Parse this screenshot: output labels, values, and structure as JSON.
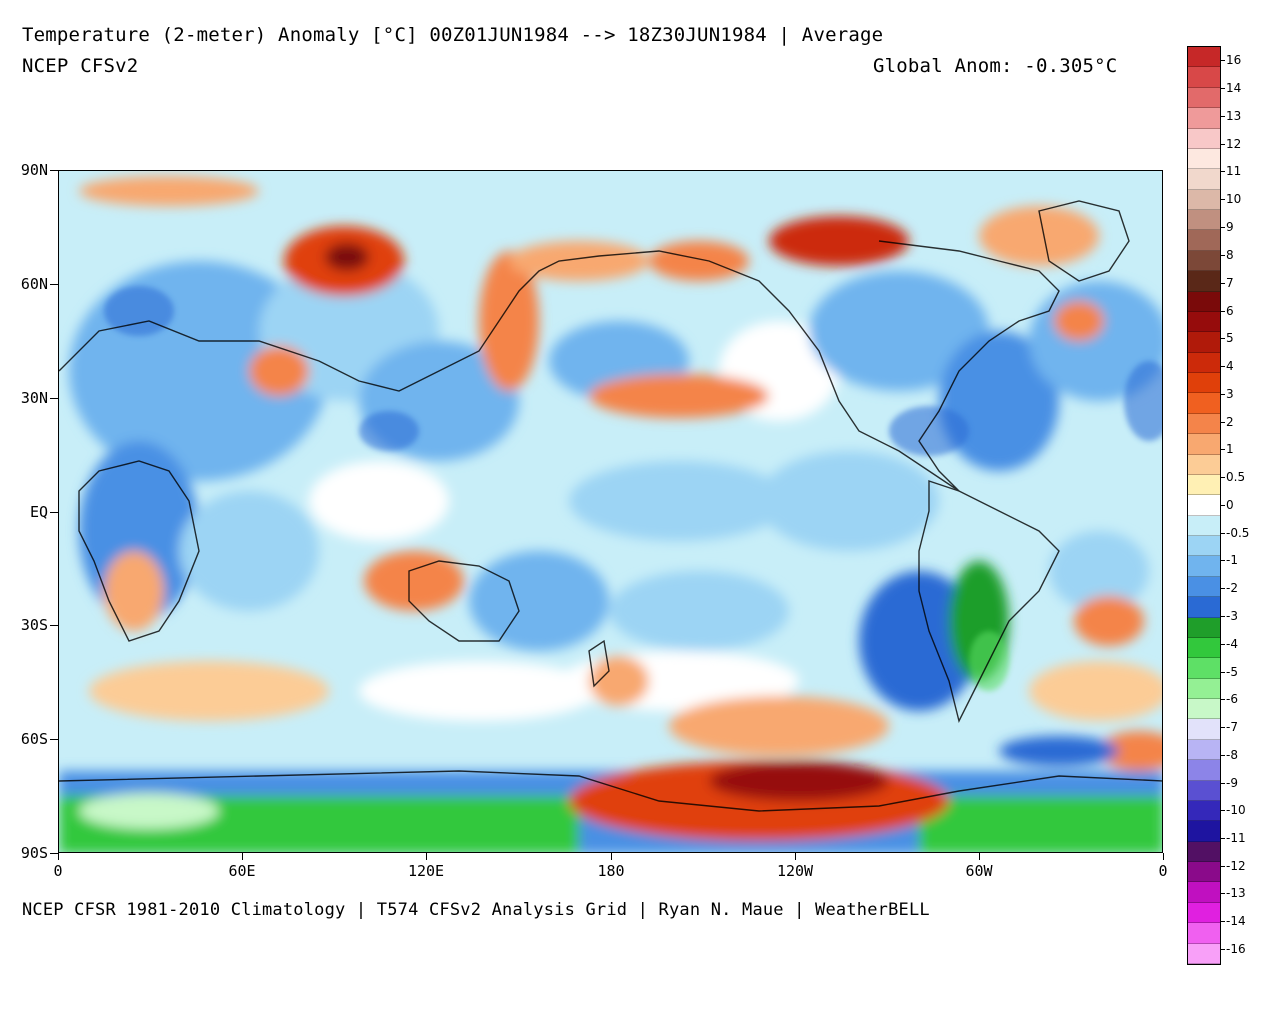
{
  "header": {
    "title": "Temperature (2-meter) Anomaly  [°C] 00Z01JUN1984 --> 18Z30JUN1984 | Average",
    "model": "NCEP CFSv2",
    "global_anom": "Global Anom: -0.305°C"
  },
  "footer": {
    "credit": "NCEP CFSR 1981-2010 Climatology | T574 CFSv2 Analysis Grid | Ryan N. Maue | WeatherBELL"
  },
  "axes": {
    "lat_labels": [
      "90N",
      "60N",
      "30N",
      "EQ",
      "30S",
      "60S",
      "90S"
    ],
    "lon_labels": [
      "0",
      "60E",
      "120E",
      "180",
      "120W",
      "60W",
      "0"
    ]
  },
  "colorbar": {
    "labels": [
      "16",
      "14",
      "13",
      "12",
      "11",
      "10",
      "9",
      "8",
      "7",
      "6",
      "5",
      "4",
      "3",
      "2",
      "1",
      "0.5",
      "0",
      "-0.5",
      "-1",
      "-2",
      "-3",
      "-4",
      "-5",
      "-6",
      "-7",
      "-8",
      "-9",
      "-10",
      "-11",
      "-12",
      "-13",
      "-14",
      "-16"
    ],
    "colors": [
      "#c62828",
      "#d84848",
      "#e26a6a",
      "#ef9a9a",
      "#f8c8c8",
      "#fde8e0",
      "#f1d8cc",
      "#dcb8a8",
      "#c09080",
      "#a06858",
      "#7c4838",
      "#5a2818",
      "#7a0a0a",
      "#960c0c",
      "#b01a0a",
      "#cc2a0a",
      "#e0400a",
      "#f06020",
      "#f4844a",
      "#f8a870",
      "#fccc96",
      "#fff0b4",
      "#ffffff",
      "#c8eef8",
      "#9cd4f4",
      "#70b4ee",
      "#4a90e4",
      "#2a6ad4",
      "#1f9e2a",
      "#32c83c",
      "#5ee066",
      "#94f094",
      "#c8f8c8",
      "#e2e2fa",
      "#b8b4f4",
      "#8c84e8",
      "#5a50d2",
      "#3428ba",
      "#1e14a0",
      "#521064",
      "#8a0a8a",
      "#c010c0",
      "#e020e0",
      "#f060f0",
      "#f8a0f8"
    ]
  }
}
